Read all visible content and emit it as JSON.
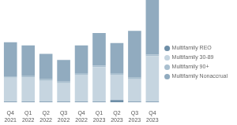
{
  "chart_data": {
    "type": "bar",
    "stacked": true,
    "grid": false,
    "legend": "right",
    "tick_labels": "x",
    "categories": [
      "Q4 2021",
      "Q1 2022",
      "Q2 2022",
      "Q3 2022",
      "Q4 2022",
      "Q1 2023",
      "Q2 2023",
      "Q3 2023",
      "Q4 2023"
    ],
    "ylim": [
      0,
      133
    ],
    "series": [
      {
        "name": "Multifamily REO",
        "color": "#6e8ea7",
        "values": [
          1,
          1,
          1,
          1,
          1,
          1,
          3,
          1,
          1
        ]
      },
      {
        "name": "Multifamily 30-89",
        "color": "#c6d5e0",
        "values": [
          31,
          32,
          27,
          24,
          35,
          45,
          33,
          29,
          59
        ]
      },
      {
        "name": "Multifamily 90+",
        "color": "#a9bfcf",
        "values": [
          2,
          2,
          2,
          2,
          2,
          2,
          2,
          2,
          2
        ]
      },
      {
        "name": "Multifamily Nonaccrual",
        "color": "#91abbf",
        "values": [
          44,
          39,
          33,
          28,
          36,
          42,
          39,
          61,
          71
        ]
      }
    ]
  }
}
